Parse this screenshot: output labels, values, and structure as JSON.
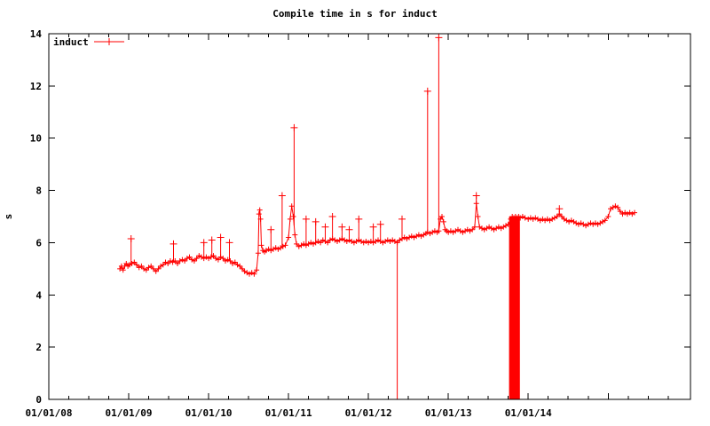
{
  "title": "Compile time in s for induct",
  "legend": {
    "label": "induct",
    "position": "top-left"
  },
  "colors": {
    "series": "#ff0000",
    "axis": "#000000",
    "text": "#000000",
    "background": "#ffffff"
  },
  "axes": {
    "ylabel": "s",
    "y_ticks": [
      0,
      2,
      4,
      6,
      8,
      10,
      12,
      14
    ],
    "x_tick_labels": [
      {
        "label": "01/01/08",
        "year": 2008
      },
      {
        "label": "01/01/09",
        "year": 2009
      },
      {
        "label": "01/01/10",
        "year": 2010
      },
      {
        "label": "01/01/11",
        "year": 2011
      },
      {
        "label": "01/01/12",
        "year": 2012
      },
      {
        "label": "01/01/13",
        "year": 2013
      },
      {
        "label": "01/01/14",
        "year": 2014
      }
    ],
    "x_major_years": [
      2008,
      2009,
      2010,
      2011,
      2012,
      2013,
      2014,
      2015
    ],
    "x_minor_step_years": 0.25
  },
  "chart_data": {
    "type": "line",
    "title": "Compile time in s for induct",
    "xlabel": "date",
    "ylabel": "s",
    "xlim_years": [
      2008.0,
      2016.03
    ],
    "ylim": [
      0,
      14
    ],
    "grid": false,
    "legend_position": "top-left",
    "series": [
      {
        "name": "induct",
        "marker": "plus",
        "color": "#ff0000",
        "points": [
          [
            2008.89,
            5.0
          ],
          [
            2008.91,
            5.1
          ],
          [
            2008.93,
            4.95
          ],
          [
            2008.95,
            5.1
          ],
          [
            2008.97,
            5.2
          ],
          [
            2008.99,
            5.1
          ],
          [
            2009.01,
            5.15
          ],
          [
            2009.04,
            5.2
          ],
          [
            2009.07,
            5.25
          ],
          [
            2009.1,
            5.15
          ],
          [
            2009.13,
            5.05
          ],
          [
            2009.16,
            5.1
          ],
          [
            2009.19,
            5.0
          ],
          [
            2009.22,
            4.95
          ],
          [
            2009.25,
            5.05
          ],
          [
            2009.28,
            5.1
          ],
          [
            2009.31,
            5.0
          ],
          [
            2009.34,
            4.9
          ],
          [
            2009.37,
            5.0
          ],
          [
            2009.4,
            5.1
          ],
          [
            2009.43,
            5.15
          ],
          [
            2009.46,
            5.25
          ],
          [
            2009.49,
            5.2
          ],
          [
            2009.52,
            5.3
          ],
          [
            2009.55,
            5.25
          ],
          [
            2009.58,
            5.3
          ],
          [
            2009.61,
            5.2
          ],
          [
            2009.64,
            5.3
          ],
          [
            2009.67,
            5.35
          ],
          [
            2009.7,
            5.3
          ],
          [
            2009.73,
            5.4
          ],
          [
            2009.76,
            5.45
          ],
          [
            2009.79,
            5.35
          ],
          [
            2009.82,
            5.3
          ],
          [
            2009.85,
            5.4
          ],
          [
            2009.88,
            5.5
          ],
          [
            2009.91,
            5.45
          ],
          [
            2009.94,
            5.4
          ],
          [
            2009.97,
            5.45
          ],
          [
            2010.0,
            5.4
          ],
          [
            2010.03,
            5.45
          ],
          [
            2010.06,
            5.5
          ],
          [
            2010.09,
            5.4
          ],
          [
            2010.12,
            5.35
          ],
          [
            2010.15,
            5.45
          ],
          [
            2010.18,
            5.4
          ],
          [
            2010.21,
            5.3
          ],
          [
            2010.24,
            5.35
          ],
          [
            2010.27,
            5.3
          ],
          [
            2010.3,
            5.2
          ],
          [
            2010.33,
            5.25
          ],
          [
            2010.36,
            5.15
          ],
          [
            2010.39,
            5.1
          ],
          [
            2010.42,
            5.0
          ],
          [
            2010.45,
            4.9
          ],
          [
            2010.48,
            4.85
          ],
          [
            2010.51,
            4.8
          ],
          [
            2010.54,
            4.85
          ],
          [
            2010.57,
            4.8
          ],
          [
            2010.6,
            4.95
          ],
          [
            2010.62,
            5.6
          ],
          [
            2010.63,
            7.1
          ],
          [
            2010.64,
            7.25
          ],
          [
            2010.65,
            6.9
          ],
          [
            2010.66,
            5.9
          ],
          [
            2010.68,
            5.7
          ],
          [
            2010.7,
            5.65
          ],
          [
            2010.72,
            5.7
          ],
          [
            2010.75,
            5.75
          ],
          [
            2010.78,
            5.7
          ],
          [
            2010.81,
            5.75
          ],
          [
            2010.84,
            5.8
          ],
          [
            2010.87,
            5.75
          ],
          [
            2010.9,
            5.8
          ],
          [
            2010.93,
            5.85
          ],
          [
            2010.96,
            5.9
          ],
          [
            2011.0,
            6.2
          ],
          [
            2011.02,
            6.9
          ],
          [
            2011.04,
            7.4
          ],
          [
            2011.06,
            7.0
          ],
          [
            2011.08,
            6.3
          ],
          [
            2011.1,
            5.95
          ],
          [
            2011.13,
            5.85
          ],
          [
            2011.16,
            5.9
          ],
          [
            2011.19,
            5.95
          ],
          [
            2011.22,
            5.9
          ],
          [
            2011.25,
            5.95
          ],
          [
            2011.28,
            6.0
          ],
          [
            2011.31,
            5.95
          ],
          [
            2011.34,
            6.0
          ],
          [
            2011.37,
            6.05
          ],
          [
            2011.4,
            6.0
          ],
          [
            2011.43,
            6.1
          ],
          [
            2011.46,
            6.05
          ],
          [
            2011.49,
            6.0
          ],
          [
            2011.52,
            6.1
          ],
          [
            2011.55,
            6.15
          ],
          [
            2011.58,
            6.1
          ],
          [
            2011.61,
            6.05
          ],
          [
            2011.64,
            6.1
          ],
          [
            2011.67,
            6.15
          ],
          [
            2011.7,
            6.1
          ],
          [
            2011.73,
            6.05
          ],
          [
            2011.76,
            6.1
          ],
          [
            2011.79,
            6.05
          ],
          [
            2011.82,
            6.0
          ],
          [
            2011.85,
            6.05
          ],
          [
            2011.88,
            6.1
          ],
          [
            2011.91,
            6.05
          ],
          [
            2011.94,
            6.0
          ],
          [
            2011.97,
            6.05
          ],
          [
            2012.0,
            6.0
          ],
          [
            2012.03,
            6.05
          ],
          [
            2012.06,
            6.0
          ],
          [
            2012.09,
            6.05
          ],
          [
            2012.12,
            6.1
          ],
          [
            2012.15,
            6.05
          ],
          [
            2012.18,
            6.0
          ],
          [
            2012.21,
            6.05
          ],
          [
            2012.24,
            6.1
          ],
          [
            2012.27,
            6.05
          ],
          [
            2012.3,
            6.1
          ],
          [
            2012.33,
            6.05
          ],
          [
            2012.36,
            6.0
          ],
          [
            2012.39,
            6.1
          ],
          [
            2012.42,
            6.15
          ],
          [
            2012.45,
            6.2
          ],
          [
            2012.48,
            6.15
          ],
          [
            2012.51,
            6.2
          ],
          [
            2012.54,
            6.25
          ],
          [
            2012.57,
            6.2
          ],
          [
            2012.6,
            6.25
          ],
          [
            2012.63,
            6.3
          ],
          [
            2012.66,
            6.25
          ],
          [
            2012.69,
            6.3
          ],
          [
            2012.72,
            6.35
          ],
          [
            2012.74,
            6.4
          ],
          [
            2012.77,
            6.35
          ],
          [
            2012.8,
            6.4
          ],
          [
            2012.83,
            6.45
          ],
          [
            2012.86,
            6.4
          ],
          [
            2012.88,
            6.45
          ],
          [
            2012.9,
            6.9
          ],
          [
            2012.92,
            7.0
          ],
          [
            2012.94,
            6.8
          ],
          [
            2012.96,
            6.5
          ],
          [
            2012.98,
            6.45
          ],
          [
            2013.0,
            6.4
          ],
          [
            2013.03,
            6.45
          ],
          [
            2013.06,
            6.4
          ],
          [
            2013.09,
            6.45
          ],
          [
            2013.12,
            6.5
          ],
          [
            2013.15,
            6.45
          ],
          [
            2013.18,
            6.4
          ],
          [
            2013.21,
            6.45
          ],
          [
            2013.24,
            6.5
          ],
          [
            2013.27,
            6.45
          ],
          [
            2013.3,
            6.5
          ],
          [
            2013.33,
            6.6
          ],
          [
            2013.35,
            7.5
          ],
          [
            2013.37,
            7.0
          ],
          [
            2013.39,
            6.6
          ],
          [
            2013.42,
            6.55
          ],
          [
            2013.45,
            6.5
          ],
          [
            2013.48,
            6.55
          ],
          [
            2013.51,
            6.6
          ],
          [
            2013.54,
            6.55
          ],
          [
            2013.57,
            6.5
          ],
          [
            2013.6,
            6.55
          ],
          [
            2013.63,
            6.6
          ],
          [
            2013.66,
            6.55
          ],
          [
            2013.69,
            6.6
          ],
          [
            2013.72,
            6.65
          ],
          [
            2013.75,
            6.7
          ],
          [
            2013.78,
            6.9
          ],
          [
            2013.8,
            7.0
          ],
          [
            2013.82,
            6.95
          ],
          [
            2013.84,
            7.0
          ],
          [
            2013.86,
            6.95
          ],
          [
            2013.88,
            7.0
          ],
          [
            2013.9,
            6.95
          ],
          [
            2013.93,
            7.0
          ],
          [
            2013.96,
            6.95
          ],
          [
            2014.0,
            6.9
          ],
          [
            2014.03,
            6.95
          ],
          [
            2014.06,
            6.9
          ],
          [
            2014.09,
            6.95
          ],
          [
            2014.12,
            6.9
          ],
          [
            2014.15,
            6.85
          ],
          [
            2014.18,
            6.9
          ],
          [
            2014.21,
            6.85
          ],
          [
            2014.24,
            6.9
          ],
          [
            2014.27,
            6.85
          ],
          [
            2014.3,
            6.9
          ],
          [
            2014.33,
            6.95
          ],
          [
            2014.36,
            7.0
          ],
          [
            2014.39,
            7.1
          ],
          [
            2014.42,
            7.0
          ],
          [
            2014.45,
            6.9
          ],
          [
            2014.48,
            6.85
          ],
          [
            2014.51,
            6.8
          ],
          [
            2014.54,
            6.85
          ],
          [
            2014.57,
            6.8
          ],
          [
            2014.6,
            6.75
          ],
          [
            2014.63,
            6.7
          ],
          [
            2014.66,
            6.75
          ],
          [
            2014.69,
            6.7
          ],
          [
            2014.72,
            6.65
          ],
          [
            2014.75,
            6.7
          ],
          [
            2014.78,
            6.75
          ],
          [
            2014.81,
            6.7
          ],
          [
            2014.84,
            6.75
          ],
          [
            2014.87,
            6.7
          ],
          [
            2014.9,
            6.75
          ],
          [
            2014.93,
            6.8
          ],
          [
            2014.96,
            6.85
          ],
          [
            2015.0,
            7.0
          ],
          [
            2015.03,
            7.3
          ],
          [
            2015.06,
            7.35
          ],
          [
            2015.09,
            7.4
          ],
          [
            2015.12,
            7.35
          ],
          [
            2015.15,
            7.2
          ],
          [
            2015.18,
            7.1
          ],
          [
            2015.21,
            7.15
          ],
          [
            2015.24,
            7.1
          ],
          [
            2015.27,
            7.15
          ],
          [
            2015.3,
            7.1
          ],
          [
            2015.33,
            7.15
          ]
        ],
        "spikes": [
          [
            2009.03,
            6.15
          ],
          [
            2009.56,
            5.95
          ],
          [
            2009.94,
            6.0
          ],
          [
            2010.04,
            6.1
          ],
          [
            2010.15,
            6.2
          ],
          [
            2010.26,
            6.0
          ],
          [
            2010.78,
            6.5
          ],
          [
            2010.92,
            7.8
          ],
          [
            2011.07,
            10.4
          ],
          [
            2011.22,
            6.9
          ],
          [
            2011.34,
            6.8
          ],
          [
            2011.46,
            6.6
          ],
          [
            2011.55,
            7.0
          ],
          [
            2011.67,
            6.6
          ],
          [
            2011.76,
            6.5
          ],
          [
            2011.88,
            6.9
          ],
          [
            2012.06,
            6.6
          ],
          [
            2012.15,
            6.7
          ],
          [
            2012.42,
            6.9
          ],
          [
            2012.74,
            11.8
          ],
          [
            2012.88,
            13.85
          ],
          [
            2013.35,
            7.8
          ],
          [
            2014.39,
            7.3
          ]
        ],
        "zero_drops": [
          {
            "t_from": 2012.355,
            "t_to": 2012.365,
            "top": 6.0
          },
          {
            "t_from": 2013.76,
            "t_to": 2013.895,
            "top": 7.0
          }
        ]
      }
    ]
  }
}
